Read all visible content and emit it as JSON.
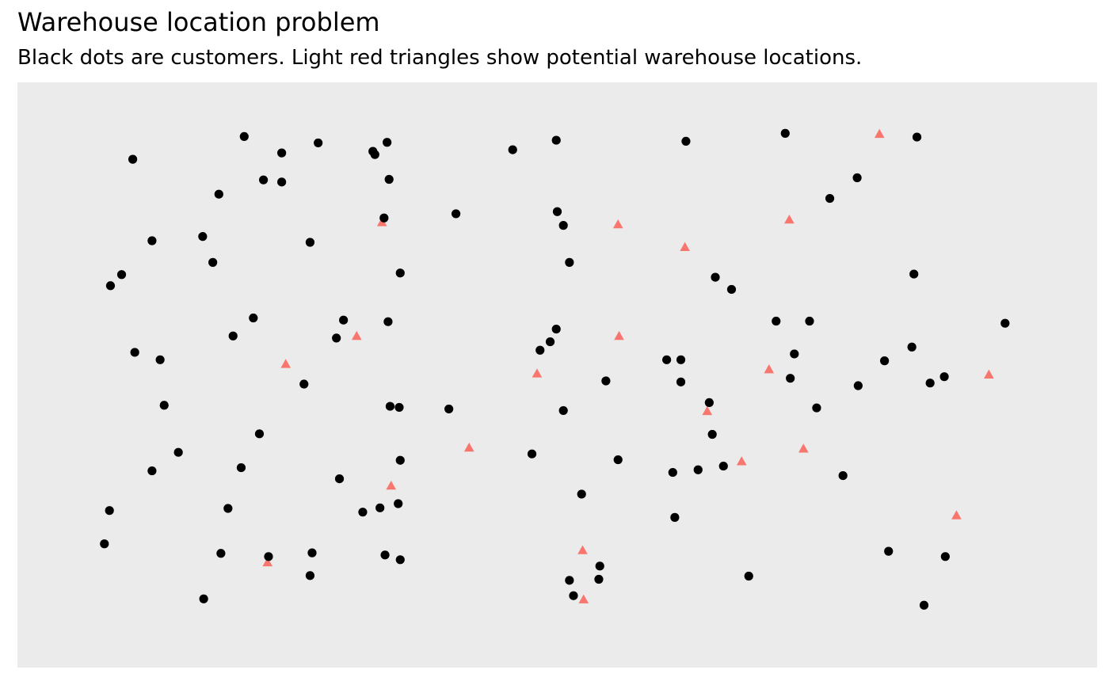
{
  "chart_data": {
    "type": "scatter",
    "title": "Warehouse location problem",
    "subtitle": "Black dots are customers. Light red triangles show potential warehouse locations.",
    "xlim": [
      0,
      100
    ],
    "ylim": [
      0,
      100
    ],
    "grid": false,
    "axes_visible": false,
    "series": [
      {
        "marker": "circle",
        "color": "#000000",
        "points": [
          [
            19.1,
            95.0
          ],
          [
            22.8,
            91.9
          ],
          [
            26.4,
            93.8
          ],
          [
            32.0,
            91.6
          ],
          [
            33.2,
            93.9
          ],
          [
            31.8,
            92.2
          ],
          [
            8.1,
            90.7
          ],
          [
            21.0,
            86.8
          ],
          [
            22.8,
            86.4
          ],
          [
            33.4,
            86.9
          ],
          [
            16.6,
            84.1
          ],
          [
            45.6,
            92.5
          ],
          [
            49.9,
            94.3
          ],
          [
            62.7,
            94.1
          ],
          [
            72.5,
            95.6
          ],
          [
            85.5,
            94.9
          ],
          [
            79.6,
            87.2
          ],
          [
            76.9,
            83.3
          ],
          [
            40.0,
            80.4
          ],
          [
            50.0,
            80.8
          ],
          [
            32.9,
            79.6
          ],
          [
            50.6,
            78.2
          ],
          [
            15.0,
            76.1
          ],
          [
            10.0,
            75.3
          ],
          [
            25.6,
            75.0
          ],
          [
            16.0,
            71.2
          ],
          [
            51.2,
            71.2
          ],
          [
            34.5,
            69.2
          ],
          [
            7.0,
            68.9
          ],
          [
            5.9,
            66.8
          ],
          [
            65.6,
            68.4
          ],
          [
            67.2,
            66.1
          ],
          [
            85.2,
            69.0
          ],
          [
            20.0,
            60.7
          ],
          [
            28.9,
            60.3
          ],
          [
            49.9,
            58.6
          ],
          [
            33.3,
            60.0
          ],
          [
            71.6,
            60.1
          ],
          [
            74.9,
            60.1
          ],
          [
            94.2,
            59.7
          ],
          [
            18.0,
            57.3
          ],
          [
            28.2,
            56.9
          ],
          [
            49.3,
            56.2
          ],
          [
            8.3,
            54.2
          ],
          [
            10.8,
            52.8
          ],
          [
            48.3,
            54.6
          ],
          [
            60.8,
            52.8
          ],
          [
            73.4,
            53.9
          ],
          [
            62.2,
            52.8
          ],
          [
            82.3,
            52.6
          ],
          [
            85.0,
            55.2
          ],
          [
            88.2,
            49.6
          ],
          [
            86.8,
            48.4
          ],
          [
            54.8,
            48.8
          ],
          [
            62.2,
            48.6
          ],
          [
            79.7,
            47.9
          ],
          [
            73.0,
            49.3
          ],
          [
            25.0,
            48.2
          ],
          [
            11.2,
            44.2
          ],
          [
            33.5,
            44.0
          ],
          [
            65.0,
            44.7
          ],
          [
            75.6,
            43.7
          ],
          [
            34.4,
            43.8
          ],
          [
            39.3,
            43.5
          ],
          [
            50.6,
            43.2
          ],
          [
            65.3,
            38.7
          ],
          [
            20.6,
            38.8
          ],
          [
            12.6,
            35.3
          ],
          [
            34.5,
            33.8
          ],
          [
            47.5,
            35.0
          ],
          [
            56.0,
            33.9
          ],
          [
            61.4,
            31.5
          ],
          [
            63.9,
            32.0
          ],
          [
            66.4,
            32.7
          ],
          [
            78.2,
            30.9
          ],
          [
            10.0,
            31.8
          ],
          [
            18.8,
            32.4
          ],
          [
            28.5,
            30.3
          ],
          [
            34.3,
            25.6
          ],
          [
            52.4,
            27.4
          ],
          [
            5.8,
            24.3
          ],
          [
            17.5,
            24.7
          ],
          [
            30.8,
            24.0
          ],
          [
            32.5,
            24.8
          ],
          [
            61.6,
            23.0
          ],
          [
            5.3,
            18.0
          ],
          [
            16.8,
            16.2
          ],
          [
            21.5,
            15.6
          ],
          [
            25.8,
            16.3
          ],
          [
            33.0,
            15.9
          ],
          [
            34.5,
            15.0
          ],
          [
            54.2,
            13.8
          ],
          [
            54.1,
            11.3
          ],
          [
            51.2,
            11.1
          ],
          [
            68.9,
            11.9
          ],
          [
            82.7,
            16.6
          ],
          [
            88.3,
            15.6
          ],
          [
            25.6,
            12.0
          ],
          [
            15.1,
            7.6
          ],
          [
            51.6,
            8.2
          ],
          [
            86.2,
            6.4
          ]
        ]
      },
      {
        "marker": "triangle",
        "color": "#F8766D",
        "points": [
          [
            81.8,
            95.4
          ],
          [
            32.7,
            78.7
          ],
          [
            56.0,
            78.3
          ],
          [
            72.9,
            79.2
          ],
          [
            62.6,
            74.0
          ],
          [
            30.2,
            57.2
          ],
          [
            56.1,
            57.2
          ],
          [
            23.2,
            51.9
          ],
          [
            48.0,
            50.1
          ],
          [
            70.9,
            50.9
          ],
          [
            92.6,
            49.9
          ],
          [
            64.8,
            43.0
          ],
          [
            41.3,
            36.1
          ],
          [
            74.3,
            35.9
          ],
          [
            68.2,
            33.5
          ],
          [
            33.6,
            28.9
          ],
          [
            89.4,
            23.3
          ],
          [
            52.5,
            16.7
          ],
          [
            21.4,
            14.4
          ],
          [
            52.6,
            7.4
          ]
        ]
      }
    ]
  }
}
